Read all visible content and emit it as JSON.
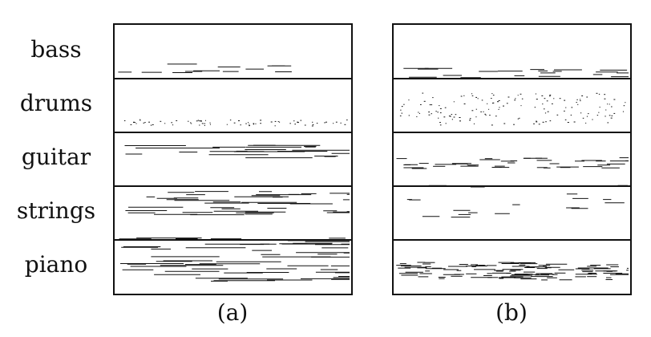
{
  "tracks": [
    "bass",
    "drums",
    "guitar",
    "strings",
    "piano"
  ],
  "panels": [
    {
      "caption": "(a)"
    },
    {
      "caption": "(b)"
    }
  ]
}
